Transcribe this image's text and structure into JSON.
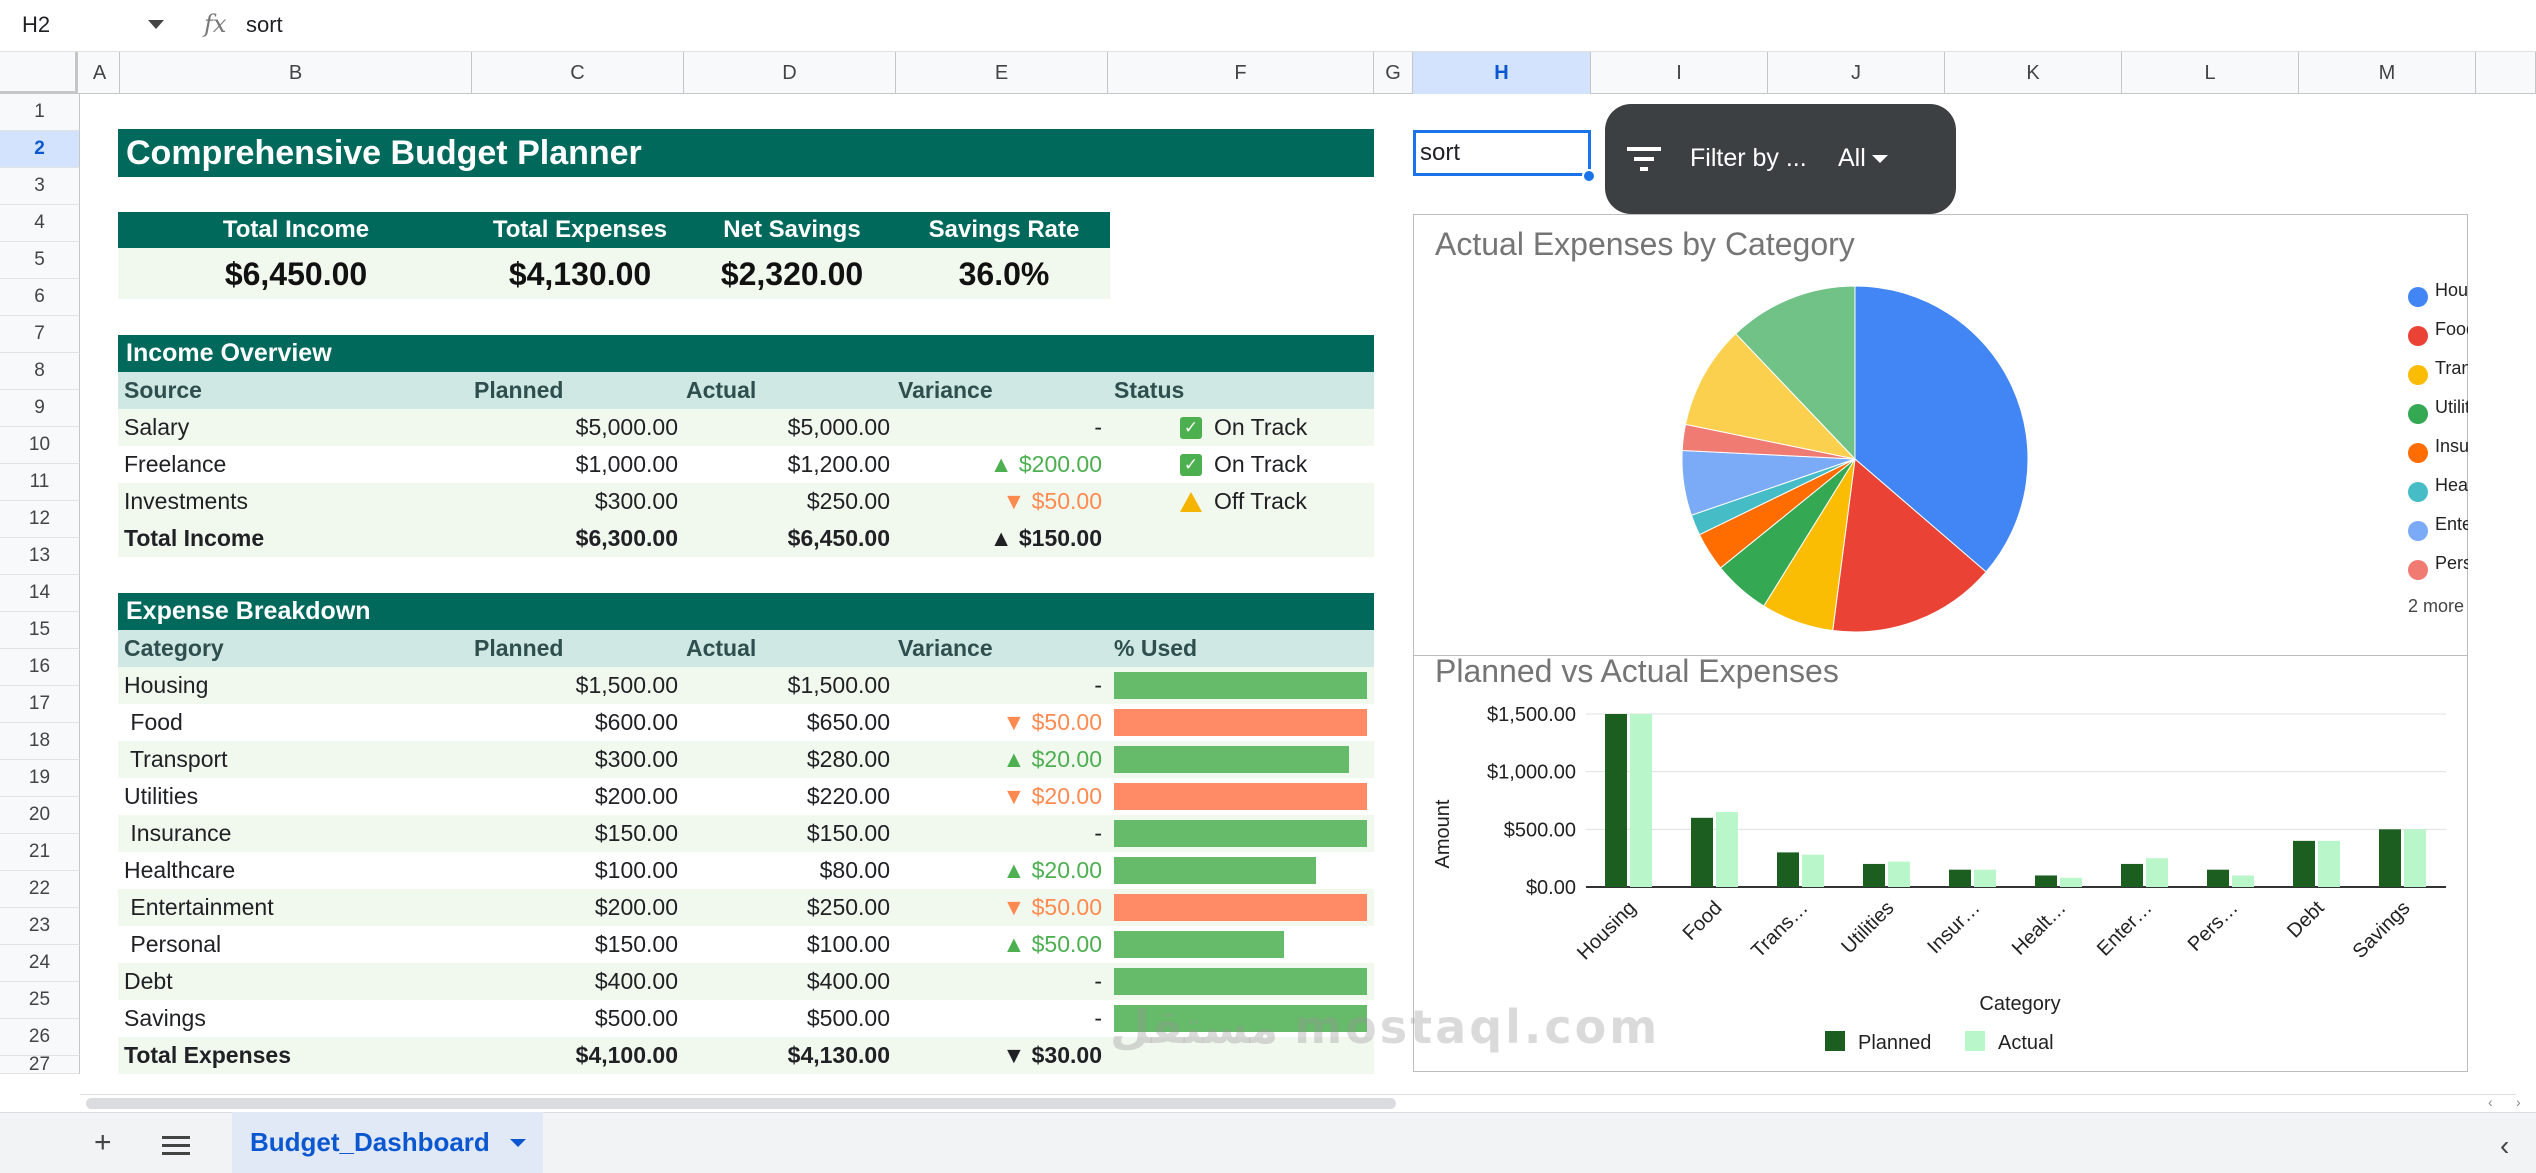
{
  "formula_bar": {
    "cell_ref": "H2",
    "fx": "fx",
    "value": "sort"
  },
  "columns": [
    {
      "label": "A",
      "l": 80,
      "w": 40
    },
    {
      "label": "B",
      "l": 120,
      "w": 352
    },
    {
      "label": "C",
      "l": 472,
      "w": 212
    },
    {
      "label": "D",
      "l": 684,
      "w": 212
    },
    {
      "label": "E",
      "l": 896,
      "w": 212
    },
    {
      "label": "F",
      "l": 1108,
      "w": 266
    },
    {
      "label": "G",
      "l": 1374,
      "w": 39
    },
    {
      "label": "H",
      "l": 1413,
      "w": 178
    },
    {
      "label": "I",
      "l": 1591,
      "w": 177
    },
    {
      "label": "J",
      "l": 1768,
      "w": 177
    },
    {
      "label": "K",
      "l": 1945,
      "w": 177
    },
    {
      "label": "L",
      "l": 2122,
      "w": 177
    },
    {
      "label": "M",
      "l": 2299,
      "w": 177
    }
  ],
  "rows": [
    "1",
    "2",
    "3",
    "4",
    "5",
    "6",
    "7",
    "8",
    "9",
    "10",
    "11",
    "12",
    "13",
    "14",
    "15",
    "16",
    "17",
    "18",
    "19",
    "20",
    "21",
    "22",
    "23",
    "24",
    "25",
    "26",
    "27"
  ],
  "title": "Comprehensive Budget Planner",
  "summary": {
    "labels": [
      "Total Income",
      "Total Expenses",
      "Net Savings",
      "Savings Rate"
    ],
    "values": [
      "$6,450.00",
      "$4,130.00",
      "$2,320.00",
      "36.0%"
    ]
  },
  "income": {
    "section": "Income Overview",
    "headers": [
      "Source",
      "Planned",
      "Actual",
      "Variance",
      "Status"
    ],
    "rows": [
      {
        "source": "Salary",
        "planned": "$5,000.00",
        "actual": "$5,000.00",
        "variance": "-",
        "dir": "",
        "status": "On Track",
        "icon": "check"
      },
      {
        "source": "Freelance",
        "planned": "$1,000.00",
        "actual": "$1,200.00",
        "variance": "▲ $200.00",
        "dir": "up",
        "status": "On Track",
        "icon": "check"
      },
      {
        "source": "Investments",
        "planned": "$300.00",
        "actual": "$250.00",
        "variance": "▼ $50.00",
        "dir": "dn",
        "status": "Off Track",
        "icon": "warn"
      }
    ],
    "total": {
      "label": "Total Income",
      "planned": "$6,300.00",
      "actual": "$6,450.00",
      "variance": "▲ $150.00"
    }
  },
  "expenses": {
    "section": "Expense Breakdown",
    "headers": [
      "Category",
      "Planned",
      "Actual",
      "Variance",
      "% Used"
    ],
    "rows": [
      {
        "category": "Housing",
        "planned": "$1,500.00",
        "actual": "$1,500.00",
        "variance": "-",
        "dir": "",
        "used": 1.0
      },
      {
        "category": " Food",
        "planned": "$600.00",
        "actual": "$650.00",
        "variance": "▼ $50.00",
        "dir": "dn",
        "used": 1.0
      },
      {
        "category": " Transport",
        "planned": "$300.00",
        "actual": "$280.00",
        "variance": "▲ $20.00",
        "dir": "up",
        "used": 0.93
      },
      {
        "category": "Utilities",
        "planned": "$200.00",
        "actual": "$220.00",
        "variance": "▼ $20.00",
        "dir": "dn",
        "used": 1.0
      },
      {
        "category": " Insurance",
        "planned": "$150.00",
        "actual": "$150.00",
        "variance": "-",
        "dir": "",
        "used": 1.0
      },
      {
        "category": "Healthcare",
        "planned": "$100.00",
        "actual": "$80.00",
        "variance": "▲ $20.00",
        "dir": "up",
        "used": 0.8
      },
      {
        "category": " Entertainment",
        "planned": "$200.00",
        "actual": "$250.00",
        "variance": "▼ $50.00",
        "dir": "dn",
        "used": 1.0
      },
      {
        "category": " Personal",
        "planned": "$150.00",
        "actual": "$100.00",
        "variance": "▲ $50.00",
        "dir": "up",
        "used": 0.67
      },
      {
        "category": "Debt",
        "planned": "$400.00",
        "actual": "$400.00",
        "variance": "-",
        "dir": "",
        "used": 1.0
      },
      {
        "category": "Savings",
        "planned": "$500.00",
        "actual": "$500.00",
        "variance": "-",
        "dir": "",
        "used": 1.0
      }
    ],
    "total": {
      "label": "Total Expenses",
      "planned": "$4,100.00",
      "actual": "$4,130.00",
      "variance": "▼ $30.00"
    }
  },
  "filter": {
    "label": "Filter by ...",
    "value": "All",
    "cell_text": "sort"
  },
  "colors": {
    "green_dark": "#00695c",
    "over": "#ff8a65",
    "under": "#66bb6a",
    "planned": "#1b5e20",
    "actual": "#b9f6ca"
  },
  "chart_data": [
    {
      "type": "pie",
      "title": "Actual Expenses by Category",
      "categories": [
        "Housing",
        "Food",
        "Transport",
        "Utilities",
        "Insurance",
        "Healthcare",
        "Entertainment",
        "Personal",
        "Debt",
        "Savings"
      ],
      "values": [
        1500,
        650,
        280,
        220,
        150,
        80,
        250,
        100,
        400,
        500
      ],
      "colors": [
        "#4285f4",
        "#ea4335",
        "#fbbc04",
        "#34a853",
        "#ff6d01",
        "#46bdc6",
        "#7baaf7",
        "#f07b72",
        "#fcd04f",
        "#71c287"
      ],
      "legend_visible": [
        "Housing",
        "Food",
        "Transport",
        "Utilities",
        "Insurance",
        "Healthcare",
        "Entertainment",
        "Personal"
      ],
      "legend_more": "2 more",
      "legend": "right"
    },
    {
      "type": "bar",
      "title": "Planned vs Actual Expenses",
      "categories": [
        "Housing",
        "Food",
        "Trans…",
        "Utilities",
        "Insur…",
        "Healt…",
        "Enter…",
        "Pers…",
        "Debt",
        "Savings"
      ],
      "series": [
        {
          "name": "Planned",
          "values": [
            1500,
            600,
            300,
            200,
            150,
            100,
            200,
            150,
            400,
            500
          ]
        },
        {
          "name": "Actual",
          "values": [
            1500,
            650,
            280,
            220,
            150,
            80,
            250,
            100,
            400,
            500
          ]
        }
      ],
      "xlabel": "Category",
      "ylabel": "Amount",
      "yticks": [
        "$0.00",
        "$500.00",
        "$1,000.00",
        "$1,500.00"
      ],
      "ylim": [
        0,
        1500
      ],
      "legend": "bottom"
    }
  ],
  "sheet_tab": "Budget_Dashboard",
  "watermark": "مستقل mostaql.com"
}
